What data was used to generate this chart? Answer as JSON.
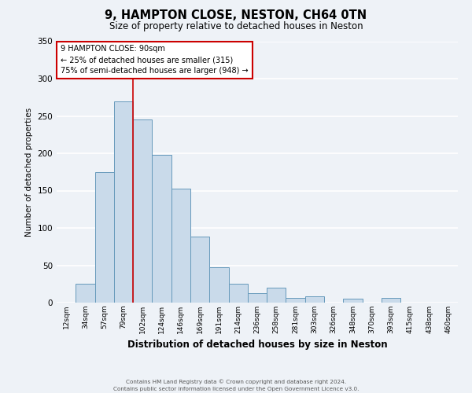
{
  "title": "9, HAMPTON CLOSE, NESTON, CH64 0TN",
  "subtitle": "Size of property relative to detached houses in Neston",
  "xlabel": "Distribution of detached houses by size in Neston",
  "ylabel": "Number of detached properties",
  "bar_labels": [
    "12sqm",
    "34sqm",
    "57sqm",
    "79sqm",
    "102sqm",
    "124sqm",
    "146sqm",
    "169sqm",
    "191sqm",
    "214sqm",
    "236sqm",
    "258sqm",
    "281sqm",
    "303sqm",
    "326sqm",
    "348sqm",
    "370sqm",
    "393sqm",
    "415sqm",
    "438sqm",
    "460sqm"
  ],
  "bar_values": [
    0,
    25,
    175,
    270,
    245,
    198,
    153,
    88,
    47,
    25,
    13,
    20,
    6,
    8,
    0,
    5,
    0,
    6,
    0,
    0,
    0
  ],
  "bar_color": "#c9daea",
  "bar_edge_color": "#6699bb",
  "background_color": "#eef2f7",
  "grid_color": "#ffffff",
  "ylim": [
    0,
    350
  ],
  "yticks": [
    0,
    50,
    100,
    150,
    200,
    250,
    300,
    350
  ],
  "vline_x": 3.5,
  "vline_color": "#cc0000",
  "annotation_title": "9 HAMPTON CLOSE: 90sqm",
  "annotation_line1": "← 25% of detached houses are smaller (315)",
  "annotation_line2": "75% of semi-detached houses are larger (948) →",
  "annotation_box_color": "#cc0000",
  "footer_line1": "Contains HM Land Registry data © Crown copyright and database right 2024.",
  "footer_line2": "Contains public sector information licensed under the Open Government Licence v3.0."
}
